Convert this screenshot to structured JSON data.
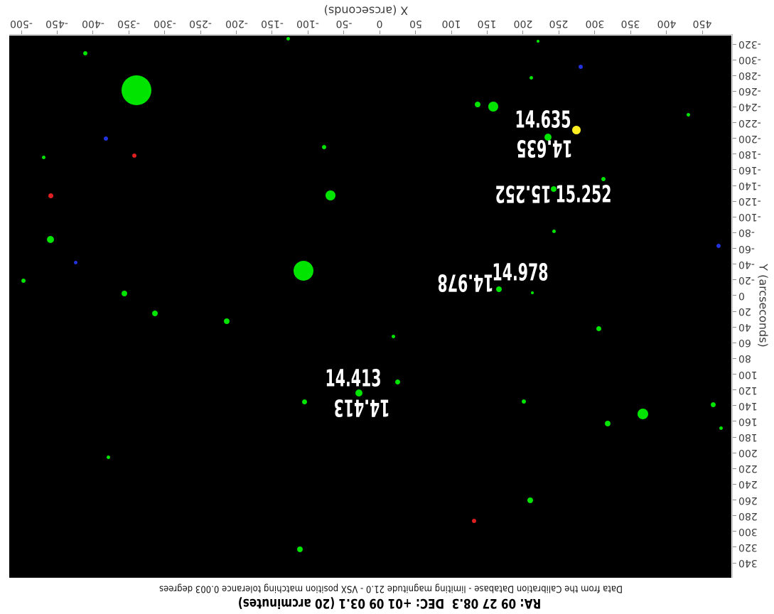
{
  "footer": {
    "primary": "RA: 09 27 08.3  DEC: +01 09 03.1 (20 arcminutes)",
    "secondary": "Data from the Calibration Database - limiting magnitude 21.0 - VSX position matching tolerance 0.003 degrees"
  },
  "chart_data": {
    "type": "scatter",
    "rotated_180": true,
    "background": "#000000",
    "xlabel": "X (arcseconds)",
    "ylabel": "Y (arcseconds)",
    "xlim": [
      -517,
      491
    ],
    "ylim": [
      -331,
      359
    ],
    "x_ticks": [
      -500,
      -450,
      -400,
      -350,
      -300,
      -250,
      -200,
      -150,
      -100,
      -50,
      0,
      50,
      100,
      150,
      200,
      250,
      300,
      350,
      400,
      450
    ],
    "y_ticks": [
      -320,
      -300,
      -280,
      -260,
      -240,
      -220,
      -200,
      -180,
      -160,
      -140,
      -120,
      -100,
      -80,
      -60,
      -40,
      -20,
      0,
      20,
      40,
      60,
      80,
      100,
      120,
      140,
      160,
      180,
      200,
      220,
      240,
      260,
      280,
      300,
      320,
      340
    ],
    "grid": false,
    "palette": {
      "green": "#00e400",
      "red": "#e02020",
      "blue": "#2233dd",
      "yellow": "#ffee22"
    },
    "points": [
      {
        "x": -128,
        "y": -327,
        "r": 2.5,
        "c": "green"
      },
      {
        "x": -411,
        "y": -308,
        "r": 3,
        "c": "green"
      },
      {
        "x": -339,
        "y": -261,
        "r": 21,
        "c": "green"
      },
      {
        "x": -469,
        "y": -176,
        "r": 2.5,
        "c": "green"
      },
      {
        "x": -78,
        "y": -189,
        "r": 3,
        "c": "green"
      },
      {
        "x": -69,
        "y": -127,
        "r": 7,
        "c": "green"
      },
      {
        "x": -459,
        "y": -71,
        "r": 5,
        "c": "green"
      },
      {
        "x": -497,
        "y": -19,
        "r": 3,
        "c": "green"
      },
      {
        "x": -356,
        "y": -3,
        "r": 4,
        "c": "green"
      },
      {
        "x": -106,
        "y": -32,
        "r": 14,
        "c": "green"
      },
      {
        "x": -314,
        "y": 23,
        "r": 4,
        "c": "green"
      },
      {
        "x": -213,
        "y": 33,
        "r": 4,
        "c": "green"
      },
      {
        "x": -29,
        "y": 124,
        "r": 5,
        "c": "green",
        "label": "14.413"
      },
      {
        "x": -105,
        "y": 135,
        "r": 3.5,
        "c": "green"
      },
      {
        "x": -379,
        "y": 206,
        "r": 2.5,
        "c": "green"
      },
      {
        "x": -111,
        "y": 323,
        "r": 4,
        "c": "green"
      },
      {
        "x": 19,
        "y": 52,
        "r": 2.5,
        "c": "green"
      },
      {
        "x": 25,
        "y": 110,
        "r": 3.5,
        "c": "green"
      },
      {
        "x": 306,
        "y": 42,
        "r": 3.5,
        "c": "green"
      },
      {
        "x": 367,
        "y": 151,
        "r": 7.5,
        "c": "green"
      },
      {
        "x": 318,
        "y": 163,
        "r": 4,
        "c": "green"
      },
      {
        "x": 465,
        "y": 139,
        "r": 3.5,
        "c": "green"
      },
      {
        "x": 476,
        "y": 169,
        "r": 2.5,
        "c": "green"
      },
      {
        "x": 201,
        "y": 135,
        "r": 3,
        "c": "green"
      },
      {
        "x": 210,
        "y": 260,
        "r": 4,
        "c": "green"
      },
      {
        "x": 221,
        "y": -324,
        "r": 2,
        "c": "green"
      },
      {
        "x": 212,
        "y": -277,
        "r": 2.5,
        "c": "green"
      },
      {
        "x": 137,
        "y": -243,
        "r": 4,
        "c": "green"
      },
      {
        "x": 158,
        "y": -240,
        "r": 7,
        "c": "green"
      },
      {
        "x": 235,
        "y": -202,
        "r": 5,
        "c": "green",
        "label": "14.635"
      },
      {
        "x": 431,
        "y": -230,
        "r": 2.5,
        "c": "green"
      },
      {
        "x": 312,
        "y": -148,
        "r": 3,
        "c": "green"
      },
      {
        "x": 243,
        "y": -136,
        "r": 4,
        "c": "green",
        "label": "15.252"
      },
      {
        "x": 243,
        "y": -82,
        "r": 2.5,
        "c": "green"
      },
      {
        "x": 166,
        "y": -8,
        "r": 4,
        "c": "green",
        "label": "14.978"
      },
      {
        "x": 213,
        "y": -4,
        "r": 2,
        "c": "green"
      },
      {
        "x": -342,
        "y": -178,
        "r": 3,
        "c": "red"
      },
      {
        "x": -459,
        "y": -127,
        "r": 3.5,
        "c": "red"
      },
      {
        "x": 132,
        "y": 287,
        "r": 3,
        "c": "red"
      },
      {
        "x": -382,
        "y": -200,
        "r": 3,
        "c": "blue"
      },
      {
        "x": -424,
        "y": -42,
        "r": 2.5,
        "c": "blue"
      },
      {
        "x": 280,
        "y": -291,
        "r": 3,
        "c": "blue"
      },
      {
        "x": 473,
        "y": -63,
        "r": 3,
        "c": "blue"
      },
      {
        "x": 274,
        "y": -211,
        "r": 6,
        "c": "yellow"
      }
    ],
    "mag_labels": [
      {
        "text": "14.635",
        "normal": {
          "x": 228,
          "y": -224
        },
        "flipped": {
          "x": 230,
          "y": -187
        }
      },
      {
        "text": "15.252",
        "normal": {
          "x": 284,
          "y": -129
        },
        "flipped": {
          "x": 200,
          "y": -129
        }
      },
      {
        "text": "14.978",
        "normal": {
          "x": 196,
          "y": -30
        },
        "flipped": {
          "x": 120,
          "y": -16
        }
      },
      {
        "text": "14.413",
        "normal": {
          "x": -37,
          "y": 105
        },
        "flipped": {
          "x": -25,
          "y": 143
        }
      }
    ],
    "legend": null,
    "title": ""
  }
}
